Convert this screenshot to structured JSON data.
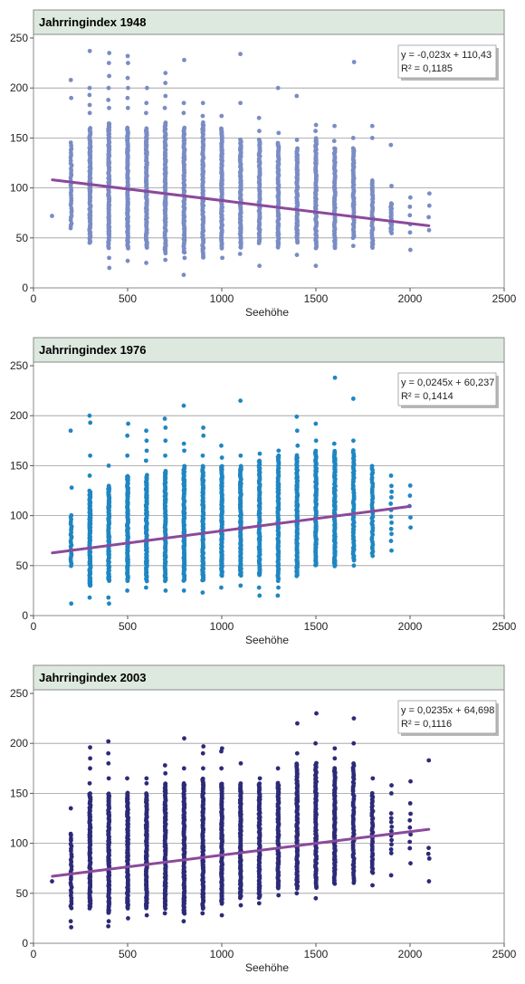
{
  "chart_data": [
    {
      "type": "scatter",
      "title": "Jahrringindex 1948",
      "xlabel": "Seehöhe",
      "ylabel": "",
      "xlim": [
        0,
        2500
      ],
      "ylim": [
        0,
        250
      ],
      "xticks": [
        "0",
        "500",
        "1000",
        "1500",
        "2000",
        "2500"
      ],
      "yticks": [
        "0",
        "50",
        "100",
        "150",
        "200",
        "250"
      ],
      "grid": "horizontal",
      "color": "#7a8cc4",
      "seed": 11,
      "trendline": {
        "slope": -0.023,
        "intercept": 110.43,
        "x_range": [
          100,
          2100
        ],
        "color": "#8a4a9c"
      },
      "annotation": {
        "equation": "y = -0,023x + 110,43",
        "r2": "R² = 0,1185",
        "position": "top-right"
      },
      "columns": [
        {
          "x": 100,
          "min": 72,
          "max": 72,
          "n": 1
        },
        {
          "x": 200,
          "min": 60,
          "max": 145,
          "n": 35,
          "extra": [
            190,
            208
          ]
        },
        {
          "x": 300,
          "min": 45,
          "max": 160,
          "n": 120,
          "extra": [
            175,
            183,
            193,
            200,
            237
          ]
        },
        {
          "x": 400,
          "min": 40,
          "max": 165,
          "n": 120,
          "extra": [
            20,
            30,
            180,
            188,
            200,
            212,
            225,
            235
          ]
        },
        {
          "x": 500,
          "min": 40,
          "max": 160,
          "n": 110,
          "extra": [
            27,
            180,
            190,
            200,
            210,
            225,
            232
          ]
        },
        {
          "x": 600,
          "min": 40,
          "max": 160,
          "n": 110,
          "extra": [
            25,
            175,
            185,
            200
          ]
        },
        {
          "x": 700,
          "min": 35,
          "max": 165,
          "n": 110,
          "extra": [
            28,
            180,
            192,
            205,
            215
          ]
        },
        {
          "x": 800,
          "min": 35,
          "max": 160,
          "n": 100,
          "extra": [
            13,
            30,
            175,
            185,
            228
          ]
        },
        {
          "x": 900,
          "min": 30,
          "max": 165,
          "n": 100,
          "extra": [
            172,
            185
          ]
        },
        {
          "x": 1000,
          "min": 40,
          "max": 160,
          "n": 100,
          "extra": [
            30,
            172
          ]
        },
        {
          "x": 1100,
          "min": 40,
          "max": 148,
          "n": 90,
          "extra": [
            34,
            185,
            234
          ]
        },
        {
          "x": 1200,
          "min": 45,
          "max": 148,
          "n": 90,
          "extra": [
            22,
            157,
            170
          ]
        },
        {
          "x": 1300,
          "min": 40,
          "max": 145,
          "n": 90,
          "extra": [
            155,
            200
          ]
        },
        {
          "x": 1400,
          "min": 45,
          "max": 140,
          "n": 90,
          "extra": [
            33,
            148,
            192
          ]
        },
        {
          "x": 1500,
          "min": 40,
          "max": 150,
          "n": 90,
          "extra": [
            22,
            157,
            163
          ]
        },
        {
          "x": 1600,
          "min": 40,
          "max": 140,
          "n": 80,
          "extra": [
            147,
            162
          ]
        },
        {
          "x": 1700,
          "min": 50,
          "max": 140,
          "n": 70,
          "extra": [
            42,
            150,
            226
          ]
        },
        {
          "x": 1800,
          "min": 40,
          "max": 108,
          "n": 45,
          "extra": [
            150,
            162
          ]
        },
        {
          "x": 1900,
          "min": 55,
          "max": 85,
          "n": 25,
          "extra": [
            102,
            143
          ]
        },
        {
          "x": 2000,
          "min": 55,
          "max": 90,
          "n": 5,
          "extra": [
            38
          ]
        },
        {
          "x": 2100,
          "min": 58,
          "max": 95,
          "n": 4
        }
      ]
    },
    {
      "type": "scatter",
      "title": "Jahrringindex 1976",
      "xlabel": "Seehöhe",
      "ylabel": "",
      "xlim": [
        0,
        2500
      ],
      "ylim": [
        0,
        250
      ],
      "xticks": [
        "0",
        "500",
        "1000",
        "1500",
        "2000",
        "2500"
      ],
      "yticks": [
        "0",
        "50",
        "100",
        "150",
        "200",
        "250"
      ],
      "grid": "horizontal",
      "color": "#1f86c2",
      "seed": 23,
      "trendline": {
        "slope": 0.0245,
        "intercept": 60.237,
        "x_range": [
          100,
          2000
        ],
        "color": "#8a4a9c"
      },
      "annotation": {
        "equation": "y = 0,0245x + 60,237",
        "r2": "R² = 0,1414",
        "position": "top-right"
      },
      "columns": [
        {
          "x": 200,
          "min": 50,
          "max": 100,
          "n": 25,
          "extra": [
            12,
            128,
            185
          ]
        },
        {
          "x": 300,
          "min": 30,
          "max": 125,
          "n": 110,
          "extra": [
            18,
            140,
            160,
            193,
            200
          ]
        },
        {
          "x": 400,
          "min": 35,
          "max": 130,
          "n": 110,
          "extra": [
            12,
            18,
            150
          ]
        },
        {
          "x": 500,
          "min": 35,
          "max": 140,
          "n": 110,
          "extra": [
            25,
            160,
            180,
            192
          ]
        },
        {
          "x": 600,
          "min": 35,
          "max": 140,
          "n": 110,
          "extra": [
            28,
            155,
            165,
            175,
            185
          ]
        },
        {
          "x": 700,
          "min": 35,
          "max": 145,
          "n": 110,
          "extra": [
            25,
            160,
            175,
            188,
            197
          ]
        },
        {
          "x": 800,
          "min": 35,
          "max": 150,
          "n": 110,
          "extra": [
            25,
            165,
            172,
            210
          ]
        },
        {
          "x": 900,
          "min": 35,
          "max": 150,
          "n": 110,
          "extra": [
            23,
            160,
            180,
            188
          ]
        },
        {
          "x": 1000,
          "min": 40,
          "max": 150,
          "n": 110,
          "extra": [
            28,
            158,
            170
          ]
        },
        {
          "x": 1100,
          "min": 40,
          "max": 150,
          "n": 100,
          "extra": [
            30,
            160,
            215
          ]
        },
        {
          "x": 1200,
          "min": 40,
          "max": 155,
          "n": 100,
          "extra": [
            20,
            28,
            162
          ]
        },
        {
          "x": 1300,
          "min": 35,
          "max": 160,
          "n": 100,
          "extra": [
            20,
            28,
            165
          ]
        },
        {
          "x": 1400,
          "min": 40,
          "max": 160,
          "n": 110,
          "extra": [
            170,
            185,
            199
          ]
        },
        {
          "x": 1500,
          "min": 50,
          "max": 165,
          "n": 110,
          "extra": [
            175,
            192
          ]
        },
        {
          "x": 1600,
          "min": 50,
          "max": 165,
          "n": 110,
          "extra": [
            172,
            238
          ]
        },
        {
          "x": 1700,
          "min": 55,
          "max": 165,
          "n": 70,
          "extra": [
            50,
            175,
            217
          ]
        },
        {
          "x": 1800,
          "min": 60,
          "max": 150,
          "n": 40
        },
        {
          "x": 1900,
          "min": 75,
          "max": 130,
          "n": 10,
          "extra": [
            65,
            140
          ]
        },
        {
          "x": 2000,
          "min": 88,
          "max": 130,
          "n": 5
        }
      ]
    },
    {
      "type": "scatter",
      "title": "Jahrringindex 2003",
      "xlabel": "Seehöhe",
      "ylabel": "",
      "xlim": [
        0,
        2500
      ],
      "ylim": [
        0,
        250
      ],
      "xticks": [
        "0",
        "500",
        "1000",
        "1500",
        "2000",
        "2500"
      ],
      "yticks": [
        "0",
        "50",
        "100",
        "150",
        "200",
        "250"
      ],
      "grid": "horizontal",
      "color": "#2d2a78",
      "seed": 37,
      "trendline": {
        "slope": 0.0235,
        "intercept": 64.698,
        "x_range": [
          100,
          2100
        ],
        "color": "#8a4a9c"
      },
      "annotation": {
        "equation": "y = 0,0235x + 64,698",
        "r2": "R² = 0,1116",
        "position": "top-right"
      },
      "columns": [
        {
          "x": 100,
          "min": 62,
          "max": 62,
          "n": 1
        },
        {
          "x": 200,
          "min": 35,
          "max": 110,
          "n": 30,
          "extra": [
            16,
            22,
            135
          ]
        },
        {
          "x": 300,
          "min": 35,
          "max": 150,
          "n": 110,
          "extra": [
            160,
            175,
            185,
            196
          ]
        },
        {
          "x": 400,
          "min": 30,
          "max": 150,
          "n": 110,
          "extra": [
            17,
            22,
            165,
            180,
            190,
            202
          ]
        },
        {
          "x": 500,
          "min": 35,
          "max": 150,
          "n": 110,
          "extra": [
            25,
            165
          ]
        },
        {
          "x": 600,
          "min": 35,
          "max": 150,
          "n": 110,
          "extra": [
            28,
            160,
            165
          ]
        },
        {
          "x": 700,
          "min": 35,
          "max": 160,
          "n": 110,
          "extra": [
            30,
            170,
            178
          ]
        },
        {
          "x": 800,
          "min": 30,
          "max": 160,
          "n": 110,
          "extra": [
            22,
            175,
            205
          ]
        },
        {
          "x": 900,
          "min": 35,
          "max": 165,
          "n": 110,
          "extra": [
            30,
            175,
            190,
            197
          ]
        },
        {
          "x": 1000,
          "min": 40,
          "max": 160,
          "n": 110,
          "extra": [
            28,
            175,
            192,
            195
          ]
        },
        {
          "x": 1100,
          "min": 45,
          "max": 160,
          "n": 100,
          "extra": [
            38,
            180
          ]
        },
        {
          "x": 1200,
          "min": 45,
          "max": 160,
          "n": 100,
          "extra": [
            40,
            165
          ]
        },
        {
          "x": 1300,
          "min": 55,
          "max": 160,
          "n": 90,
          "extra": [
            48,
            175
          ]
        },
        {
          "x": 1400,
          "min": 55,
          "max": 180,
          "n": 110,
          "extra": [
            50,
            190,
            220
          ]
        },
        {
          "x": 1500,
          "min": 55,
          "max": 180,
          "n": 100,
          "extra": [
            45,
            200,
            230
          ]
        },
        {
          "x": 1600,
          "min": 60,
          "max": 175,
          "n": 100,
          "extra": [
            185,
            195
          ]
        },
        {
          "x": 1700,
          "min": 60,
          "max": 180,
          "n": 60,
          "extra": [
            200,
            225
          ]
        },
        {
          "x": 1800,
          "min": 70,
          "max": 150,
          "n": 40,
          "extra": [
            58,
            165
          ]
        },
        {
          "x": 1900,
          "min": 90,
          "max": 130,
          "n": 10,
          "extra": [
            68,
            150,
            158
          ]
        },
        {
          "x": 2000,
          "min": 95,
          "max": 130,
          "n": 6,
          "extra": [
            80,
            140,
            162
          ]
        },
        {
          "x": 2100,
          "min": 85,
          "max": 95,
          "n": 3,
          "extra": [
            62,
            183
          ]
        }
      ]
    }
  ]
}
